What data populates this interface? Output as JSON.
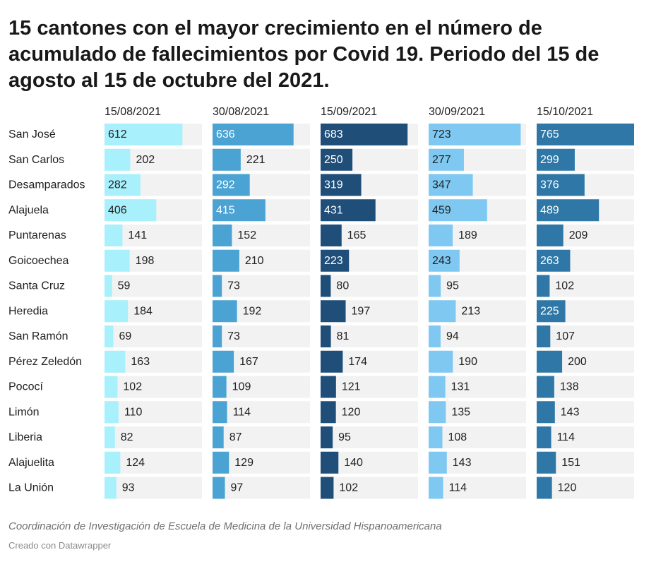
{
  "title": "15 cantones con el mayor crecimiento en el número de acumulado de fallecimientos por Covid 19. Periodo del 15 de agosto al 15 de octubre del 2021.",
  "source": "Coordinación de Investigación de Escuela de Medicina de la Universidad Hispanoamericana",
  "credit": "Creado con Datawrapper",
  "colors": {
    "track": "#f2f2f2",
    "series": [
      "#a8f0fb",
      "#4aa3d2",
      "#1f4e79",
      "#7ec8f2",
      "#2f77a6"
    ],
    "label_dark": "#222222",
    "label_light": "#ffffff"
  },
  "chart_data": {
    "type": "bar",
    "layout": "small-multiples-horizontal",
    "categories": [
      "San José",
      "San Carlos",
      "Desamparados",
      "Alajuela",
      "Puntarenas",
      "Goicoechea",
      "Santa Cruz",
      "Heredia",
      "San Ramón",
      "Pérez Zeledón",
      "Pococí",
      "Limón",
      "Liberia",
      "Alajuelita",
      "La Unión"
    ],
    "series": [
      {
        "name": "15/08/2021",
        "values": [
          612,
          202,
          282,
          406,
          141,
          198,
          59,
          184,
          69,
          163,
          102,
          110,
          82,
          124,
          93
        ]
      },
      {
        "name": "30/08/2021",
        "values": [
          636,
          221,
          292,
          415,
          152,
          210,
          73,
          192,
          73,
          167,
          109,
          114,
          87,
          129,
          97
        ]
      },
      {
        "name": "15/09/2021",
        "values": [
          683,
          250,
          319,
          431,
          165,
          223,
          80,
          197,
          81,
          174,
          121,
          120,
          95,
          140,
          102
        ]
      },
      {
        "name": "30/09/2021",
        "values": [
          723,
          277,
          347,
          459,
          189,
          243,
          95,
          213,
          94,
          190,
          131,
          135,
          108,
          143,
          114
        ]
      },
      {
        "name": "15/10/2021",
        "values": [
          765,
          299,
          376,
          489,
          209,
          263,
          102,
          225,
          107,
          200,
          138,
          143,
          114,
          151,
          120
        ]
      }
    ],
    "xlim": [
      0,
      765
    ],
    "grid": false,
    "legend": "none"
  }
}
